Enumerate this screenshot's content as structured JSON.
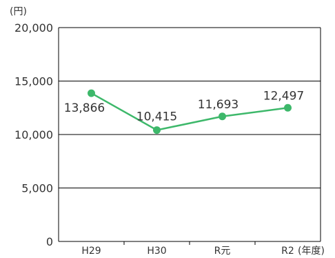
{
  "chart_data": {
    "type": "line",
    "title": "",
    "xlabel": "(年度)",
    "ylabel": "(円)",
    "categories": [
      "H29",
      "H30",
      "R元",
      "R2"
    ],
    "values": [
      13866,
      10415,
      11693,
      12497
    ],
    "data_labels": [
      "13,866",
      "10,415",
      "11,693",
      "12,497"
    ],
    "ylim": [
      0,
      20000
    ],
    "yticks": [
      0,
      5000,
      10000,
      15000,
      20000
    ],
    "ytick_labels": [
      "0",
      "5,000",
      "10,000",
      "15,000",
      "20,000"
    ],
    "grid": true,
    "legend": "none",
    "colors": {
      "line": "#3db86a",
      "grid": "#000000",
      "text": "#333333"
    }
  }
}
